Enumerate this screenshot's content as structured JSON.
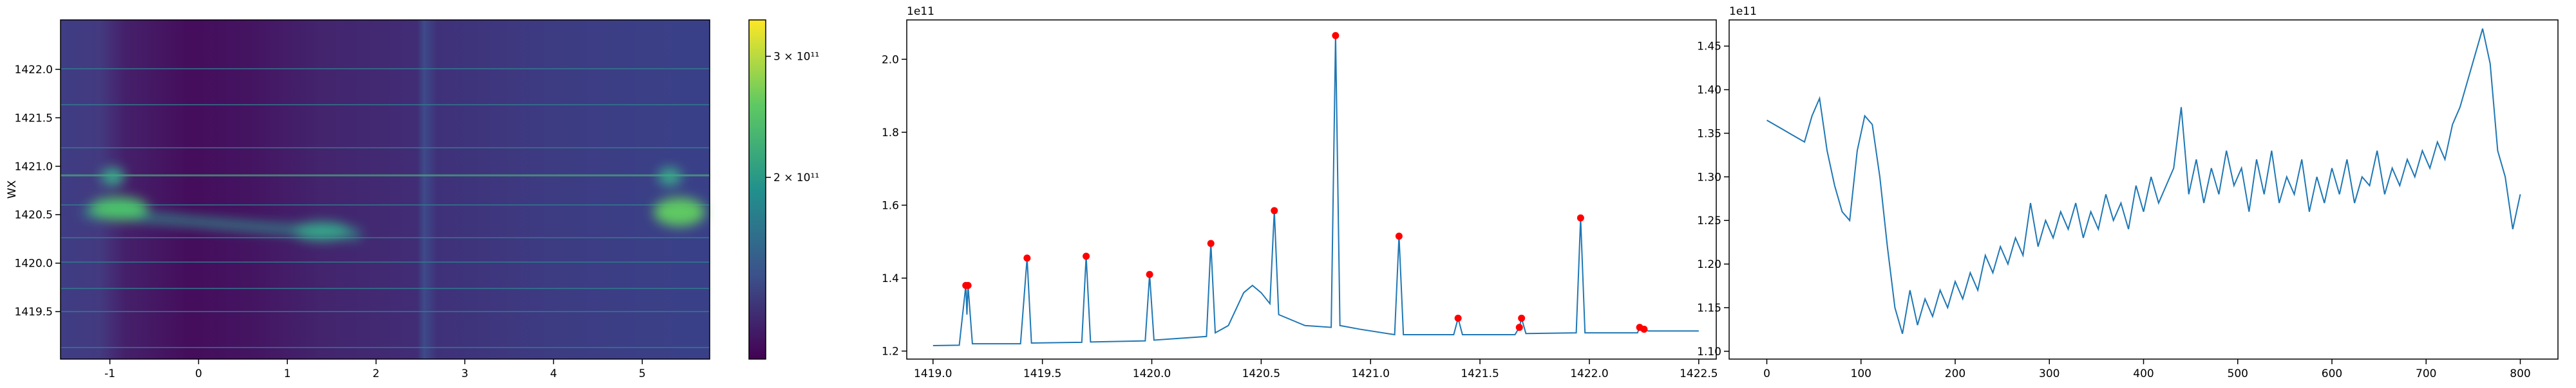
{
  "chart_data": [
    {
      "type": "heatmap",
      "ylabel": "WX",
      "xlim": [
        -1.556,
        5.76
      ],
      "xticks": [
        -1,
        0,
        1,
        2,
        3,
        4,
        5
      ],
      "ylim": [
        1419.01,
        1422.51
      ],
      "yticks": [
        1419.5,
        {
          "value": 1420,
          "label": "1420.0"
        },
        1420.5,
        {
          "value": 1421,
          "label": "1421.0"
        },
        1421.5,
        {
          "value": 1422,
          "label": "1422.0"
        }
      ],
      "clim": [
        50000000000,
        330000000000
      ],
      "cticks": [
        {
          "value": 200000000000,
          "label": "2 × 10¹¹"
        },
        {
          "value": 300000000000,
          "label": "3 × 10¹¹"
        }
      ],
      "colormap": [
        "#440154",
        "#3b528b",
        "#21918c",
        "#5ec962",
        "#fde725"
      ]
    },
    {
      "type": "line",
      "offset_label": "1e11",
      "xlim": [
        1418.88,
        1422.58
      ],
      "xticks": [
        {
          "value": 1419,
          "label": "1419.0"
        },
        1419.5,
        {
          "value": 1420,
          "label": "1420.0"
        },
        1420.5,
        {
          "value": 1421,
          "label": "1421.0"
        },
        1421.5,
        {
          "value": 1422,
          "label": "1422.0"
        },
        1422.5
      ],
      "ylim": [
        1.178,
        2.108
      ],
      "yticks": [
        1.2,
        1.4,
        1.6,
        1.8,
        {
          "value": 2,
          "label": "2.0"
        }
      ],
      "series": [
        {
          "kind": "line",
          "color": "#1f77b4",
          "x": [
            1419.0,
            1419.12,
            1419.15,
            1419.155,
            1419.16,
            1419.18,
            1419.4,
            1419.43,
            1419.45,
            1419.68,
            1419.7,
            1419.72,
            1419.97,
            1419.99,
            1420.01,
            1420.25,
            1420.27,
            1420.29,
            1420.35,
            1420.42,
            1420.46,
            1420.5,
            1420.54,
            1420.56,
            1420.58,
            1420.7,
            1420.82,
            1420.84,
            1420.86,
            1420.95,
            1421.11,
            1421.13,
            1421.15,
            1421.38,
            1421.4,
            1421.42,
            1421.66,
            1421.68,
            1421.69,
            1421.71,
            1421.94,
            1421.96,
            1421.98,
            1422.22,
            1422.23,
            1422.25,
            1422.27,
            1422.5
          ],
          "values": [
            1.215,
            1.216,
            1.38,
            1.3,
            1.38,
            1.22,
            1.22,
            1.455,
            1.222,
            1.224,
            1.46,
            1.225,
            1.228,
            1.41,
            1.23,
            1.24,
            1.495,
            1.25,
            1.27,
            1.36,
            1.38,
            1.36,
            1.33,
            1.585,
            1.3,
            1.27,
            1.265,
            2.065,
            1.27,
            1.26,
            1.245,
            1.515,
            1.245,
            1.245,
            1.29,
            1.245,
            1.245,
            1.265,
            1.29,
            1.248,
            1.25,
            1.565,
            1.25,
            1.25,
            1.265,
            1.26,
            1.255,
            1.255
          ]
        },
        {
          "kind": "points",
          "color": "#ff0000",
          "x": [
            1419.15,
            1419.16,
            1419.43,
            1419.7,
            1419.99,
            1420.27,
            1420.56,
            1420.84,
            1421.13,
            1421.4,
            1421.68,
            1421.69,
            1421.96,
            1422.23,
            1422.25
          ],
          "values": [
            1.38,
            1.38,
            1.455,
            1.46,
            1.41,
            1.495,
            1.585,
            2.065,
            1.515,
            1.29,
            1.265,
            1.29,
            1.565,
            1.265,
            1.26
          ]
        }
      ]
    },
    {
      "type": "line",
      "offset_label": "1e11",
      "xlim": [
        -40,
        840
      ],
      "xticks": [
        0,
        100,
        200,
        300,
        400,
        500,
        600,
        700,
        800
      ],
      "ylim": [
        1.091,
        1.48
      ],
      "yticks": [
        {
          "value": 1.1,
          "label": "1.10"
        },
        1.15,
        {
          "value": 1.2,
          "label": "1.20"
        },
        1.25,
        {
          "value": 1.3,
          "label": "1.30"
        },
        1.35,
        {
          "value": 1.4,
          "label": "1.40"
        },
        1.45
      ],
      "series": [
        {
          "kind": "line",
          "color": "#1f77b4",
          "x": [
            0,
            8,
            16,
            24,
            32,
            40,
            48,
            56,
            64,
            72,
            80,
            88,
            96,
            104,
            112,
            120,
            128,
            136,
            144,
            152,
            160,
            168,
            176,
            184,
            192,
            200,
            208,
            216,
            224,
            232,
            240,
            248,
            256,
            264,
            272,
            280,
            288,
            296,
            304,
            312,
            320,
            328,
            336,
            344,
            352,
            360,
            368,
            376,
            384,
            392,
            400,
            408,
            416,
            424,
            432,
            440,
            448,
            456,
            464,
            472,
            480,
            488,
            496,
            504,
            512,
            520,
            528,
            536,
            544,
            552,
            560,
            568,
            576,
            584,
            592,
            600,
            608,
            616,
            624,
            632,
            640,
            648,
            656,
            664,
            672,
            680,
            688,
            696,
            704,
            712,
            720,
            728,
            736,
            744,
            752,
            760,
            768,
            776,
            784,
            792,
            800
          ],
          "values": [
            1.365,
            1.36,
            1.355,
            1.35,
            1.345,
            1.34,
            1.37,
            1.39,
            1.33,
            1.29,
            1.26,
            1.25,
            1.33,
            1.37,
            1.36,
            1.3,
            1.22,
            1.15,
            1.12,
            1.17,
            1.13,
            1.16,
            1.14,
            1.17,
            1.15,
            1.18,
            1.16,
            1.19,
            1.17,
            1.21,
            1.19,
            1.22,
            1.2,
            1.23,
            1.21,
            1.27,
            1.22,
            1.25,
            1.23,
            1.26,
            1.24,
            1.27,
            1.23,
            1.26,
            1.24,
            1.28,
            1.25,
            1.27,
            1.24,
            1.29,
            1.26,
            1.3,
            1.27,
            1.29,
            1.31,
            1.38,
            1.28,
            1.32,
            1.27,
            1.31,
            1.28,
            1.33,
            1.29,
            1.31,
            1.26,
            1.32,
            1.28,
            1.33,
            1.27,
            1.3,
            1.28,
            1.32,
            1.26,
            1.3,
            1.27,
            1.31,
            1.28,
            1.32,
            1.27,
            1.3,
            1.29,
            1.33,
            1.28,
            1.31,
            1.29,
            1.32,
            1.3,
            1.33,
            1.31,
            1.34,
            1.32,
            1.36,
            1.38,
            1.41,
            1.44,
            1.47,
            1.43,
            1.33,
            1.3,
            1.24,
            1.28
          ]
        }
      ]
    }
  ]
}
